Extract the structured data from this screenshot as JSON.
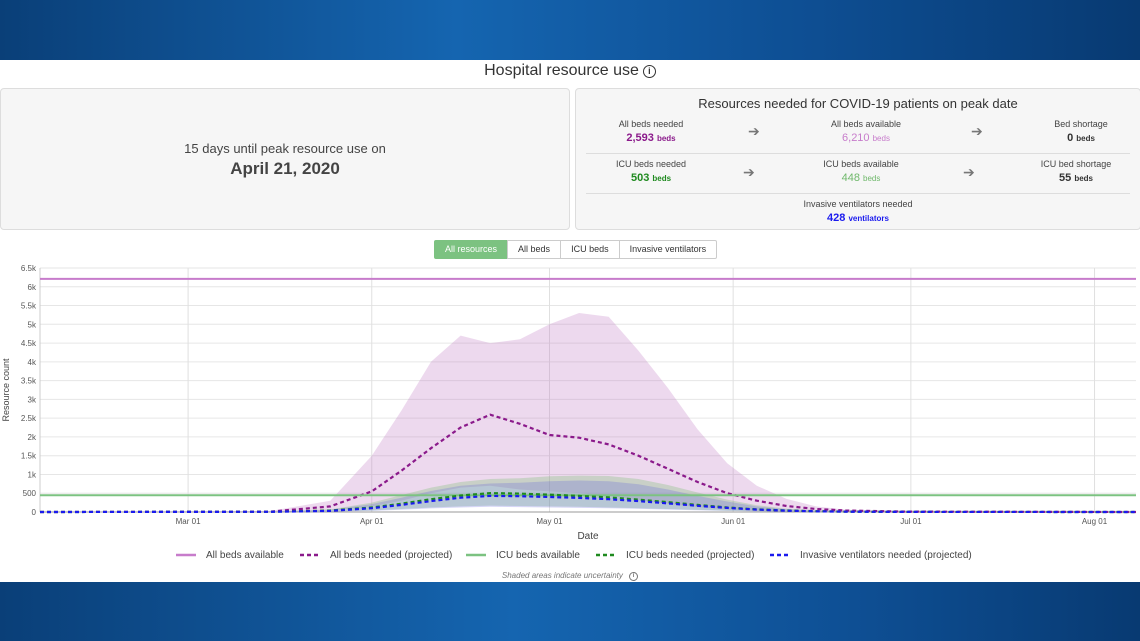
{
  "page": {
    "title": "Hospital resource use"
  },
  "peak": {
    "prefix": "15 days until peak resource use on",
    "date": "April 21, 2020"
  },
  "resources": {
    "title": "Resources needed for COVID-19 patients on peak date",
    "all_beds_needed": {
      "label": "All beds needed",
      "value": "2,593",
      "unit": "beds"
    },
    "all_beds_available": {
      "label": "All beds available",
      "value": "6,210",
      "unit": "beds"
    },
    "bed_shortage": {
      "label": "Bed shortage",
      "value": "0",
      "unit": "beds"
    },
    "icu_beds_needed": {
      "label": "ICU beds needed",
      "value": "503",
      "unit": "beds"
    },
    "icu_beds_available": {
      "label": "ICU beds available",
      "value": "448",
      "unit": "beds"
    },
    "icu_bed_shortage": {
      "label": "ICU bed shortage",
      "value": "55",
      "unit": "beds"
    },
    "ventilators_needed": {
      "label": "Invasive ventilators needed",
      "value": "428",
      "unit": "ventilators"
    }
  },
  "tabs": [
    "All resources",
    "All beds",
    "ICU beds",
    "Invasive ventilators"
  ],
  "colors": {
    "purple": "#8b1a8b",
    "light_purple": "#b06ab3",
    "green": "#2e8b22",
    "light_green": "#6fb86b",
    "blue": "#1a1aee",
    "accent": "#7cc281"
  },
  "footnote": "Shaded areas indicate uncertainty",
  "chart_data": {
    "type": "line",
    "xlabel": "Date",
    "ylabel": "Resource count",
    "ylim": [
      0,
      6500
    ],
    "yticks": [
      0,
      500,
      1000,
      1500,
      2000,
      2500,
      3000,
      3500,
      4000,
      4500,
      5000,
      5500,
      6000,
      6500
    ],
    "ytick_labels": [
      "0",
      "500",
      "1k",
      "1.5k",
      "2k",
      "2.5k",
      "3k",
      "3.5k",
      "4k",
      "4.5k",
      "5k",
      "5.5k",
      "6k",
      "6.5k"
    ],
    "xlim": [
      "2020-02-05",
      "2020-08-08"
    ],
    "xticks": [
      "2020-03-01",
      "2020-04-01",
      "2020-05-01",
      "2020-06-01",
      "2020-07-01",
      "2020-08-01"
    ],
    "xtick_labels": [
      "Mar 01",
      "Apr 01",
      "May 01",
      "Jun 01",
      "Jul 01",
      "Aug 01"
    ],
    "grid": true,
    "legend_position": "bottom",
    "series": [
      {
        "name": "All beds available",
        "style": "solid",
        "color": "#c77ccb",
        "x": [
          "2020-02-05",
          "2020-08-08"
        ],
        "y": [
          6210,
          6210
        ]
      },
      {
        "name": "All beds needed (projected)",
        "style": "dashed",
        "color": "#8b1a8b",
        "x": [
          "2020-02-05",
          "2020-03-15",
          "2020-03-25",
          "2020-04-01",
          "2020-04-06",
          "2020-04-11",
          "2020-04-16",
          "2020-04-21",
          "2020-04-26",
          "2020-05-01",
          "2020-05-06",
          "2020-05-11",
          "2020-05-16",
          "2020-05-21",
          "2020-05-26",
          "2020-05-31",
          "2020-06-05",
          "2020-06-10",
          "2020-06-15",
          "2020-06-20",
          "2020-06-30",
          "2020-08-08"
        ],
        "y": [
          0,
          10,
          150,
          550,
          1100,
          1700,
          2250,
          2593,
          2350,
          2050,
          1980,
          1800,
          1500,
          1150,
          800,
          500,
          300,
          160,
          80,
          40,
          10,
          0
        ],
        "band_upper": [
          0,
          30,
          300,
          1500,
          2700,
          4000,
          4700,
          4500,
          4600,
          5000,
          5300,
          5200,
          4300,
          3300,
          2200,
          1300,
          700,
          350,
          150,
          60,
          20,
          0
        ],
        "band_lower": [
          0,
          0,
          40,
          150,
          300,
          500,
          650,
          700,
          600,
          550,
          500,
          430,
          320,
          220,
          130,
          70,
          35,
          15,
          5,
          2,
          0,
          0
        ]
      },
      {
        "name": "ICU beds available",
        "style": "solid",
        "color": "#7cc281",
        "x": [
          "2020-02-05",
          "2020-08-08"
        ],
        "y": [
          448,
          448
        ]
      },
      {
        "name": "ICU beds needed (projected)",
        "style": "dashed",
        "color": "#1f8a1f",
        "x": [
          "2020-02-05",
          "2020-03-15",
          "2020-03-25",
          "2020-04-01",
          "2020-04-06",
          "2020-04-11",
          "2020-04-16",
          "2020-04-21",
          "2020-04-26",
          "2020-05-01",
          "2020-05-06",
          "2020-05-11",
          "2020-05-16",
          "2020-05-21",
          "2020-05-26",
          "2020-05-31",
          "2020-06-05",
          "2020-06-10",
          "2020-06-15",
          "2020-06-20",
          "2020-06-30",
          "2020-08-08"
        ],
        "y": [
          0,
          5,
          40,
          120,
          220,
          340,
          440,
          503,
          490,
          460,
          430,
          390,
          330,
          260,
          190,
          120,
          70,
          40,
          20,
          10,
          3,
          0
        ],
        "band_upper": [
          0,
          10,
          70,
          250,
          450,
          650,
          800,
          880,
          900,
          950,
          970,
          960,
          880,
          720,
          520,
          330,
          180,
          90,
          40,
          15,
          5,
          0
        ],
        "band_lower": [
          0,
          0,
          10,
          40,
          80,
          120,
          150,
          170,
          160,
          150,
          140,
          120,
          100,
          80,
          55,
          35,
          20,
          10,
          5,
          2,
          0,
          0
        ]
      },
      {
        "name": "Invasive ventilators needed (projected)",
        "style": "dashed",
        "color": "#1a1aee",
        "x": [
          "2020-02-05",
          "2020-03-15",
          "2020-03-25",
          "2020-04-01",
          "2020-04-06",
          "2020-04-11",
          "2020-04-16",
          "2020-04-21",
          "2020-04-26",
          "2020-05-01",
          "2020-05-06",
          "2020-05-11",
          "2020-05-16",
          "2020-05-21",
          "2020-05-26",
          "2020-05-31",
          "2020-06-05",
          "2020-06-10",
          "2020-06-15",
          "2020-06-20",
          "2020-06-30",
          "2020-08-08"
        ],
        "y": [
          0,
          4,
          30,
          100,
          190,
          290,
          380,
          428,
          420,
          400,
          375,
          340,
          290,
          230,
          165,
          110,
          65,
          35,
          18,
          8,
          2,
          0
        ],
        "band_upper": [
          0,
          8,
          60,
          210,
          380,
          560,
          700,
          760,
          780,
          820,
          840,
          820,
          740,
          600,
          430,
          280,
          150,
          75,
          35,
          12,
          4,
          0
        ],
        "band_lower": [
          0,
          0,
          8,
          30,
          60,
          95,
          120,
          140,
          130,
          120,
          110,
          100,
          85,
          65,
          45,
          30,
          16,
          8,
          4,
          1,
          0,
          0
        ]
      }
    ]
  }
}
